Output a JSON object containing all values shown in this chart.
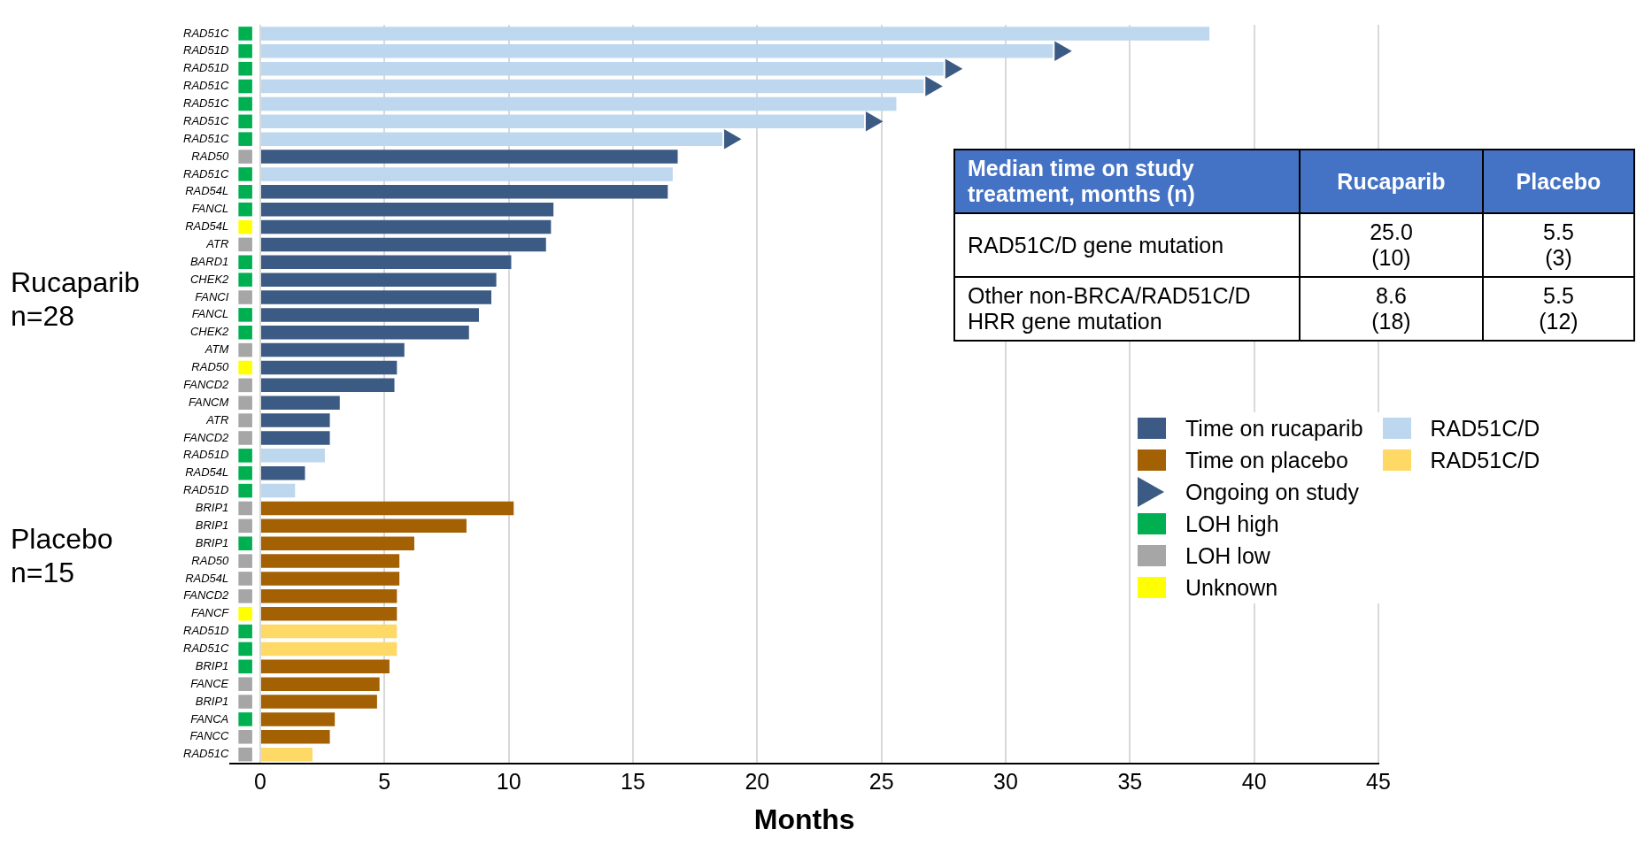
{
  "chart_data": {
    "type": "bar",
    "orientation": "horizontal",
    "xlabel": "Months",
    "grid": "x",
    "legend": "right",
    "categories": [
      "RAD51C",
      "RAD51D",
      "RAD51D",
      "RAD51C",
      "RAD51C",
      "RAD51C",
      "RAD51C",
      "RAD50",
      "RAD51C",
      "RAD54L",
      "FANCL",
      "RAD54L",
      "ATR",
      "BARD1",
      "CHEK2",
      "FANCI",
      "FANCL",
      "CHEK2",
      "ATM",
      "RAD50",
      "FANCD2",
      "FANCM",
      "ATR",
      "FANCD2",
      "RAD51D",
      "RAD54L",
      "RAD51D",
      "BRIP1",
      "BRIP1",
      "BRIP1",
      "RAD50",
      "RAD54L",
      "FANCD2",
      "FANCF",
      "RAD51D",
      "RAD51C",
      "BRIP1",
      "FANCE",
      "BRIP1",
      "FANCA",
      "FANCC",
      "RAD51C"
    ],
    "xlim": [
      -1.2,
      45
    ],
    "xticks": [
      0,
      5,
      10,
      15,
      20,
      25,
      30,
      35,
      40,
      45
    ],
    "series": [
      {
        "name": "Time on rucaparib",
        "color": "#3b5a84",
        "values": [
          null,
          null,
          null,
          null,
          null,
          null,
          null,
          16.8,
          null,
          16.4,
          11.8,
          11.7,
          11.5,
          10.1,
          9.5,
          9.3,
          8.8,
          8.4,
          5.8,
          5.5,
          5.4,
          3.2,
          2.8,
          2.8,
          null,
          1.8,
          null,
          null,
          null,
          null,
          null,
          null,
          null,
          null,
          null,
          null,
          null,
          null,
          null,
          null,
          null,
          null
        ]
      },
      {
        "name": "Time on placebo",
        "color": "#a36103",
        "values": [
          null,
          null,
          null,
          null,
          null,
          null,
          null,
          null,
          null,
          null,
          null,
          null,
          null,
          null,
          null,
          null,
          null,
          null,
          null,
          null,
          null,
          null,
          null,
          null,
          null,
          null,
          null,
          10.2,
          8.3,
          6.2,
          5.6,
          5.6,
          5.5,
          5.5,
          null,
          null,
          5.2,
          4.8,
          4.7,
          3.0,
          2.8,
          null
        ]
      },
      {
        "name": "Ongoing on study",
        "type": "scatter",
        "marker": "triangle",
        "color": "#3b5a84",
        "values": [
          null,
          32.2,
          27.8,
          27.0,
          null,
          24.6,
          18.9,
          null,
          null,
          null,
          null,
          null,
          null,
          null,
          null,
          null,
          null,
          null,
          null,
          null,
          null,
          null,
          null,
          null,
          null,
          null,
          null,
          null,
          null,
          null,
          null,
          null,
          null,
          null,
          null,
          null,
          null,
          null,
          null,
          null,
          null,
          null
        ]
      },
      {
        "name": "LOH high",
        "type": "scatter",
        "marker": "square",
        "color": "#00b050",
        "values": [
          -0.6,
          -0.6,
          -0.6,
          -0.6,
          -0.6,
          -0.6,
          -0.6,
          null,
          -0.6,
          -0.6,
          -0.6,
          null,
          null,
          -0.6,
          -0.6,
          null,
          -0.6,
          -0.6,
          null,
          null,
          null,
          null,
          null,
          null,
          -0.6,
          -0.6,
          -0.6,
          null,
          null,
          -0.6,
          null,
          null,
          null,
          null,
          -0.6,
          -0.6,
          -0.6,
          null,
          null,
          -0.6,
          null,
          null
        ]
      },
      {
        "name": "LOH low",
        "type": "scatter",
        "marker": "square",
        "color": "#a6a6a6",
        "values": [
          null,
          null,
          null,
          null,
          null,
          null,
          null,
          -0.6,
          null,
          null,
          null,
          null,
          -0.6,
          null,
          null,
          -0.6,
          null,
          null,
          -0.6,
          null,
          -0.6,
          -0.6,
          -0.6,
          -0.6,
          null,
          null,
          null,
          -0.6,
          -0.6,
          null,
          -0.6,
          -0.6,
          -0.6,
          null,
          null,
          null,
          null,
          -0.6,
          -0.6,
          null,
          -0.6,
          -0.6
        ]
      },
      {
        "name": "Unknown",
        "type": "scatter",
        "marker": "square",
        "color": "#ffff00",
        "values": [
          null,
          null,
          null,
          null,
          null,
          null,
          null,
          null,
          null,
          null,
          null,
          -0.6,
          null,
          null,
          null,
          null,
          null,
          null,
          null,
          -0.6,
          null,
          null,
          null,
          null,
          null,
          null,
          null,
          null,
          null,
          null,
          null,
          null,
          null,
          -0.6,
          null,
          null,
          null,
          null,
          null,
          null,
          null,
          null
        ]
      },
      {
        "name": "RAD51C/D",
        "color": "#bdd7ee",
        "values": [
          38.2,
          31.9,
          27.5,
          26.7,
          25.6,
          24.3,
          18.6,
          null,
          16.6,
          null,
          null,
          null,
          null,
          null,
          null,
          null,
          null,
          null,
          null,
          null,
          null,
          null,
          null,
          null,
          2.6,
          null,
          1.4,
          null,
          null,
          null,
          null,
          null,
          null,
          null,
          null,
          null,
          null,
          null,
          null,
          null,
          null,
          null
        ]
      },
      {
        "name": "RAD51C/D",
        "color": "#ffd966",
        "values": [
          null,
          null,
          null,
          null,
          null,
          null,
          null,
          null,
          null,
          null,
          null,
          null,
          null,
          null,
          null,
          null,
          null,
          null,
          null,
          null,
          null,
          null,
          null,
          null,
          null,
          null,
          null,
          null,
          null,
          null,
          null,
          null,
          null,
          null,
          5.5,
          5.5,
          null,
          null,
          null,
          null,
          null,
          2.1
        ]
      }
    ],
    "annotations": [
      "Rucaparib\nn=28",
      "Placebo\nn=15",
      "Median time on study treatment, months (n)",
      "Rucaparib",
      "Placebo",
      "RAD51C/D gene mutation",
      "25.0\n(10)",
      "5.5\n(3)",
      "Other non-BRCA/RAD51C/D HRR gene mutation",
      "8.6\n(18)",
      "5.5\n(12)"
    ]
  }
}
